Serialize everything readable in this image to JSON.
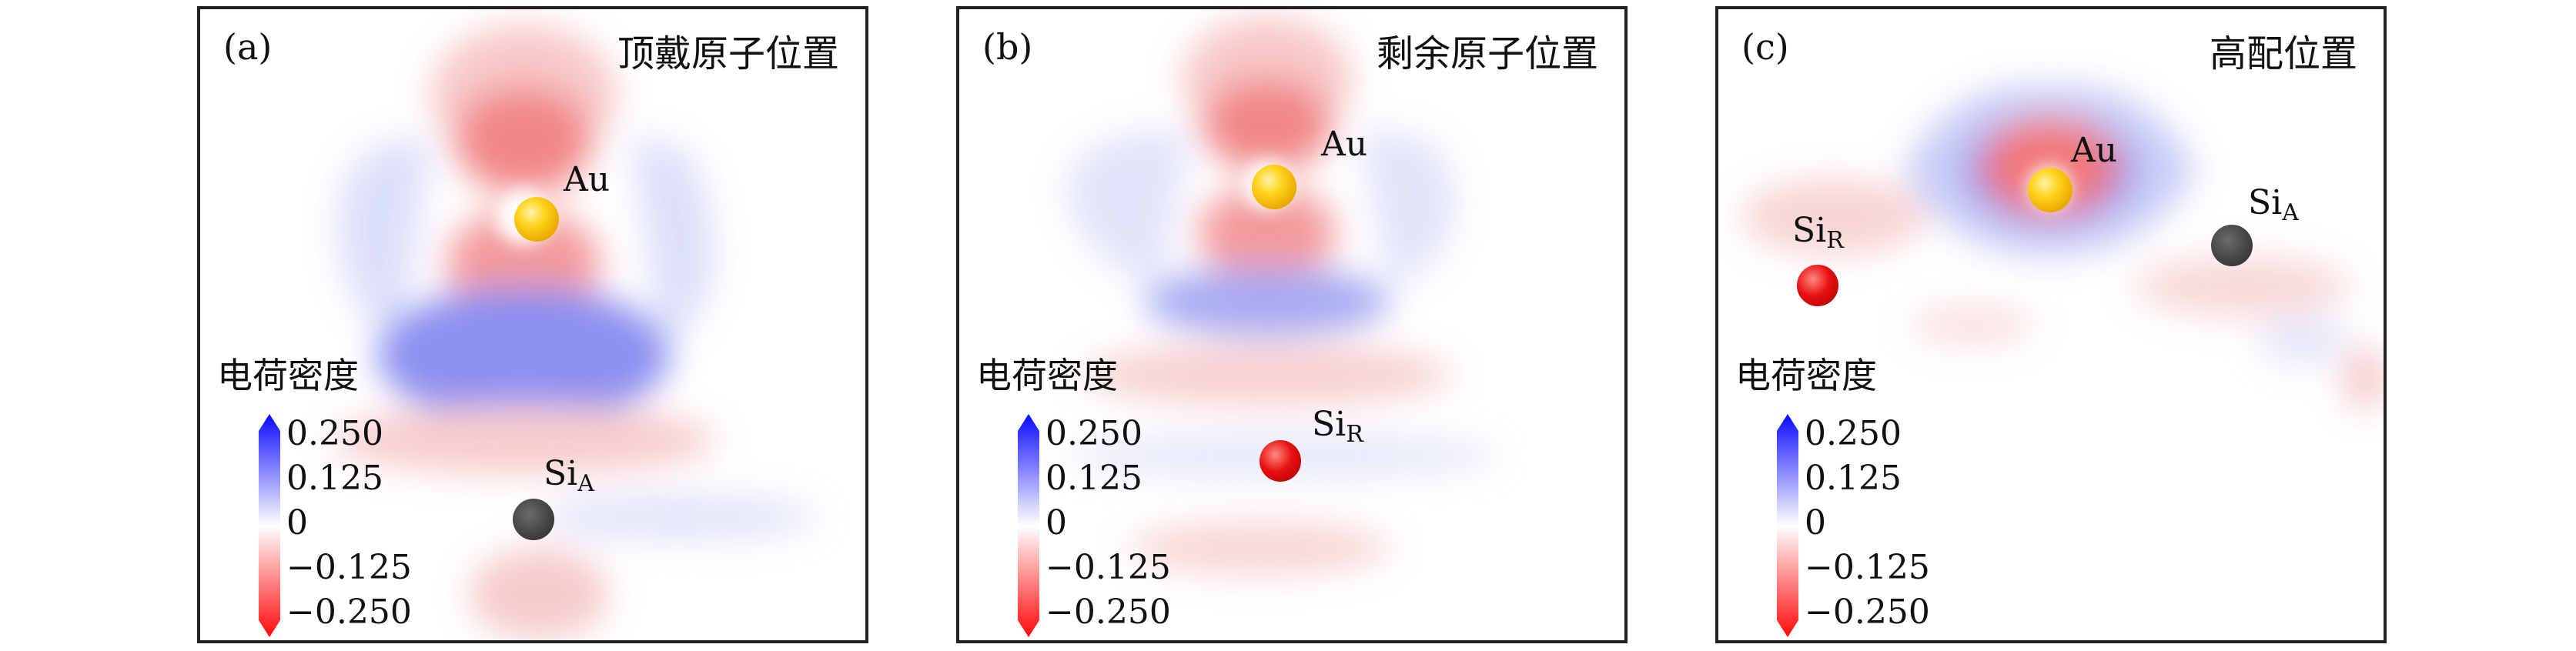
{
  "panels": [
    {
      "label": "(a)",
      "title": "顶戴原子位置",
      "atoms": [
        {
          "label": "Au",
          "sub": ""
        },
        {
          "label": "Si",
          "sub": "A"
        }
      ],
      "colorbar": {
        "title": "电荷密度",
        "ticks": [
          "0.250",
          "0.125",
          "0",
          "−0.125",
          "−0.250"
        ]
      }
    },
    {
      "label": "(b)",
      "title": "剩余原子位置",
      "atoms": [
        {
          "label": "Au",
          "sub": ""
        },
        {
          "label": "Si",
          "sub": "R"
        }
      ],
      "colorbar": {
        "title": "电荷密度",
        "ticks": [
          "0.250",
          "0.125",
          "0",
          "−0.125",
          "−0.250"
        ]
      }
    },
    {
      "label": "(c)",
      "title": "高配位置",
      "atoms": [
        {
          "label": "Au",
          "sub": ""
        },
        {
          "label": "Si",
          "sub": "R"
        },
        {
          "label": "Si",
          "sub": "A"
        }
      ],
      "colorbar": {
        "title": "电荷密度",
        "ticks": [
          "0.250",
          "0.125",
          "0",
          "−0.125",
          "−0.250"
        ]
      }
    }
  ],
  "colors": {
    "positive": "#2020ff",
    "negative": "#ff1010",
    "zero": "#ffffff"
  }
}
